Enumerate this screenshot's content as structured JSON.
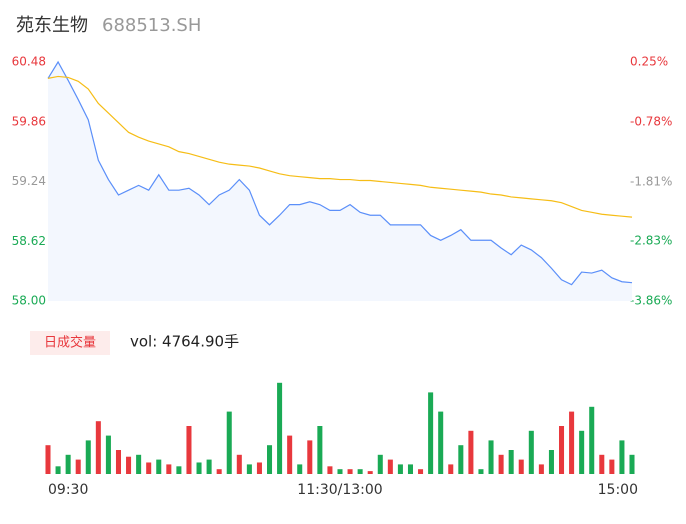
{
  "header": {
    "title": "苑东生物",
    "code": "688513.SH"
  },
  "chart_data": [
    {
      "type": "line",
      "categories": [
        "09:30",
        null,
        null,
        null,
        null,
        null,
        null,
        null,
        null,
        null,
        null,
        null,
        null,
        null,
        null,
        null,
        null,
        null,
        null,
        null,
        null,
        null,
        null,
        null,
        null,
        null,
        null,
        null,
        null,
        "11:30/13:00",
        null,
        null,
        null,
        null,
        null,
        null,
        null,
        null,
        null,
        null,
        null,
        null,
        null,
        null,
        null,
        null,
        null,
        null,
        null,
        null,
        null,
        null,
        null,
        null,
        null,
        null,
        null,
        null,
        "15:00"
      ],
      "series": [
        {
          "name": "price",
          "color": "#5b8ff9",
          "values": [
            60.31,
            60.48,
            60.29,
            60.09,
            59.88,
            59.46,
            59.26,
            59.1,
            59.15,
            59.2,
            59.15,
            59.31,
            59.15,
            59.15,
            59.17,
            59.1,
            59.0,
            59.1,
            59.15,
            59.26,
            59.15,
            58.89,
            58.79,
            58.89,
            59.0,
            59.0,
            59.03,
            59.0,
            58.94,
            58.94,
            59.0,
            58.92,
            58.89,
            58.89,
            58.79,
            58.79,
            58.79,
            58.79,
            58.68,
            58.63,
            58.68,
            58.74,
            58.63,
            58.63,
            58.63,
            58.55,
            58.48,
            58.58,
            58.53,
            58.45,
            58.34,
            58.22,
            58.17,
            58.3,
            58.29,
            58.32,
            58.24,
            58.2,
            58.19
          ]
        },
        {
          "name": "average",
          "color": "#f6bd16",
          "values": [
            60.31,
            60.33,
            60.32,
            60.28,
            60.2,
            60.05,
            59.95,
            59.85,
            59.75,
            59.7,
            59.66,
            59.63,
            59.6,
            59.55,
            59.53,
            59.5,
            59.47,
            59.44,
            59.42,
            59.41,
            59.4,
            59.38,
            59.35,
            59.32,
            59.3,
            59.29,
            59.28,
            59.27,
            59.27,
            59.26,
            59.26,
            59.25,
            59.25,
            59.24,
            59.23,
            59.22,
            59.21,
            59.2,
            59.18,
            59.17,
            59.16,
            59.15,
            59.14,
            59.13,
            59.11,
            59.1,
            59.08,
            59.07,
            59.06,
            59.05,
            59.04,
            59.02,
            58.98,
            58.94,
            58.92,
            58.9,
            58.89,
            58.88,
            58.87
          ]
        }
      ],
      "ylim": [
        58.0,
        60.48
      ],
      "yticks": [
        {
          "value": 58.0,
          "label": "58.00"
        },
        58.62,
        59.24,
        59.86,
        60.48
      ],
      "ytick_colors": [
        "#1aaa55",
        "#1aaa55",
        "#999999",
        "#e8383d",
        "#e8383d"
      ],
      "y2lim": [
        -3.86,
        0.25
      ],
      "y2ticks": [
        {
          "value": -3.86,
          "label": "-3.86%"
        },
        {
          "value": -2.83,
          "label": "-2.83%"
        },
        {
          "value": -1.81,
          "label": "-1.81%"
        },
        {
          "value": -0.78,
          "label": "-0.78%"
        },
        {
          "value": 0.25,
          "label": "0.25%"
        }
      ]
    },
    {
      "type": "bar",
      "title": "日成交量",
      "annotation": "vol: 4764.90手",
      "values": [
        30,
        8,
        20,
        15,
        35,
        55,
        40,
        25,
        18,
        20,
        12,
        15,
        10,
        8,
        50,
        12,
        15,
        5,
        65,
        20,
        10,
        12,
        30,
        95,
        40,
        10,
        35,
        50,
        8,
        5,
        5,
        5,
        3,
        20,
        15,
        10,
        10,
        5,
        85,
        65,
        10,
        30,
        45,
        5,
        35,
        20,
        25,
        15,
        45,
        10,
        25,
        50,
        65,
        45,
        70,
        20,
        15,
        35,
        20
      ],
      "colors": [
        "#e8383d",
        "#1aaa55",
        "#1aaa55",
        "#e8383d",
        "#1aaa55",
        "#e8383d",
        "#1aaa55",
        "#e8383d",
        "#e8383d",
        "#1aaa55",
        "#e8383d",
        "#1aaa55",
        "#e8383d",
        "#1aaa55",
        "#e8383d",
        "#1aaa55",
        "#1aaa55",
        "#e8383d",
        "#1aaa55",
        "#e8383d",
        "#1aaa55",
        "#e8383d",
        "#1aaa55",
        "#1aaa55",
        "#e8383d",
        "#1aaa55",
        "#e8383d",
        "#1aaa55",
        "#e8383d",
        "#1aaa55",
        "#e8383d",
        "#1aaa55",
        "#e8383d",
        "#1aaa55",
        "#e8383d",
        "#1aaa55",
        "#1aaa55",
        "#e8383d",
        "#1aaa55",
        "#1aaa55",
        "#e8383d",
        "#1aaa55",
        "#e8383d",
        "#1aaa55",
        "#1aaa55",
        "#e8383d",
        "#1aaa55",
        "#e8383d",
        "#1aaa55",
        "#e8383d",
        "#1aaa55",
        "#e8383d",
        "#e8383d",
        "#1aaa55",
        "#1aaa55",
        "#e8383d",
        "#e8383d",
        "#1aaa55",
        "#1aaa55"
      ],
      "ylim": [
        0,
        100
      ]
    }
  ]
}
